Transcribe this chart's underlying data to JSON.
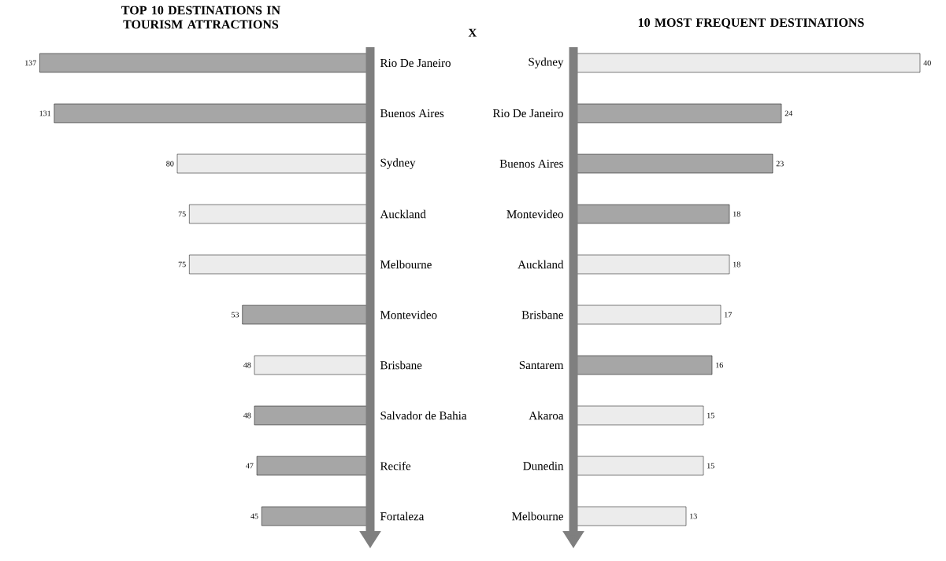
{
  "chart_data": [
    {
      "type": "bar",
      "orientation": "horizontal",
      "title": "TOP 10 DESTINATIONS IN TOURISM ATTRACTIONS",
      "annotations": [
        "X"
      ],
      "categories": [
        "Rio De Janeiro",
        "Buenos Aires",
        "Sydney",
        "Auckland",
        "Melbourne",
        "Montevideo",
        "Brisbane",
        "Salvador de Bahia",
        "Recife",
        "Fortaleza"
      ],
      "values": [
        137,
        131,
        80,
        75,
        75,
        53,
        48,
        48,
        47,
        45
      ],
      "colors": [
        "#a6a6a6",
        "#a6a6a6",
        "#ececec",
        "#ececec",
        "#ececec",
        "#a6a6a6",
        "#ececec",
        "#a6a6a6",
        "#a6a6a6",
        "#a6a6a6"
      ],
      "data_labels": true
    },
    {
      "type": "bar",
      "orientation": "horizontal",
      "title": "10 MOST FREQUENT DESTINATIONS",
      "categories": [
        "Sydney",
        "Rio De Janeiro",
        "Buenos Aires",
        "Montevideo",
        "Auckland",
        "Brisbane",
        "Santarem",
        "Akaroa",
        "Dunedin",
        "Melbourne"
      ],
      "values": [
        40,
        24,
        23,
        18,
        18,
        17,
        16,
        15,
        15,
        13
      ],
      "colors": [
        "#ececec",
        "#a6a6a6",
        "#a6a6a6",
        "#a6a6a6",
        "#ececec",
        "#ececec",
        "#a6a6a6",
        "#ececec",
        "#ececec",
        "#ececec"
      ],
      "data_labels": true
    }
  ]
}
